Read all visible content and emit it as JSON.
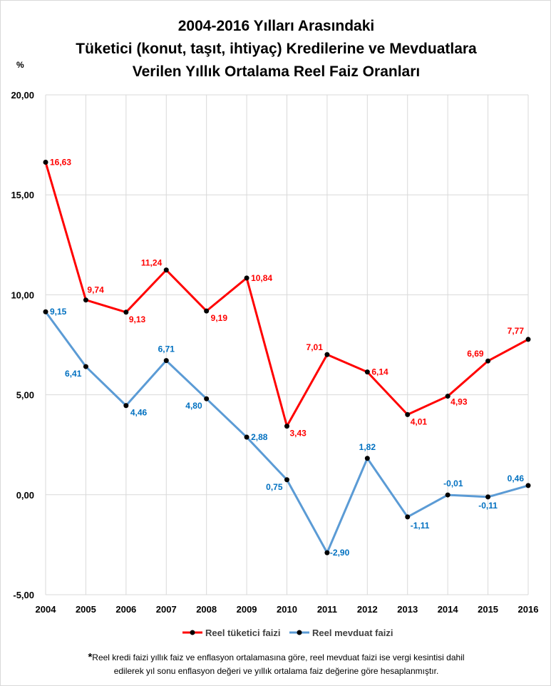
{
  "chart_data": {
    "type": "line",
    "title": [
      "2004-2016 Yılları Arasındaki",
      "Tüketici (konut,  taşıt, ihtiyaç) Kredilerine ve Mevduatlara",
      "Verilen Yıllık Ortalama Reel Faiz Oranları"
    ],
    "ylabel": "%",
    "ylim": [
      -5,
      20
    ],
    "yticks": [
      "-5,00",
      "0,00",
      "5,00",
      "10,00",
      "15,00",
      "20,00"
    ],
    "ytick_values": [
      -5,
      0,
      5,
      10,
      15,
      20
    ],
    "categories": [
      "2004",
      "2005",
      "2006",
      "2007",
      "2008",
      "2009",
      "2010",
      "2011",
      "2012",
      "2013",
      "2014",
      "2015",
      "2016"
    ],
    "grid": true,
    "legend_position": "bottom",
    "series": [
      {
        "name": "Reel tüketici faizi",
        "color": "#ff0000",
        "values": [
          16.63,
          9.74,
          9.13,
          11.24,
          9.19,
          10.84,
          3.43,
          7.01,
          6.14,
          4.01,
          4.93,
          6.69,
          7.77
        ],
        "labels": [
          "16,63",
          "9,74",
          "9,13",
          "11,24",
          "9,19",
          "10,84",
          "3,43",
          "7,01",
          "6,14",
          "4,01",
          "4,93",
          "6,69",
          "7,77"
        ]
      },
      {
        "name": "Reel mevduat faizi",
        "color": "#5b9bd5",
        "label_color": "#0070c0",
        "values": [
          9.15,
          6.41,
          4.46,
          6.71,
          4.8,
          2.88,
          0.75,
          -2.9,
          1.82,
          -1.11,
          -0.01,
          -0.11,
          0.46
        ],
        "labels": [
          "9,15",
          "6,41",
          "4,46",
          "6,71",
          "4,80",
          "2,88",
          "0,75",
          "-2,90",
          "1,82",
          "-1,11",
          "-0,01",
          "-0,11",
          "0,46"
        ]
      }
    ]
  },
  "footnote": {
    "star": "*",
    "line1": "Reel kredi faizi yıllık faiz ve enflasyon ortalamasına göre, reel mevduat faizi ise vergi kesintisi dahil",
    "line2": "edilerek yıl sonu enflasyon değeri ve yıllık ortalama faiz değerine göre hesaplanmıştır."
  }
}
